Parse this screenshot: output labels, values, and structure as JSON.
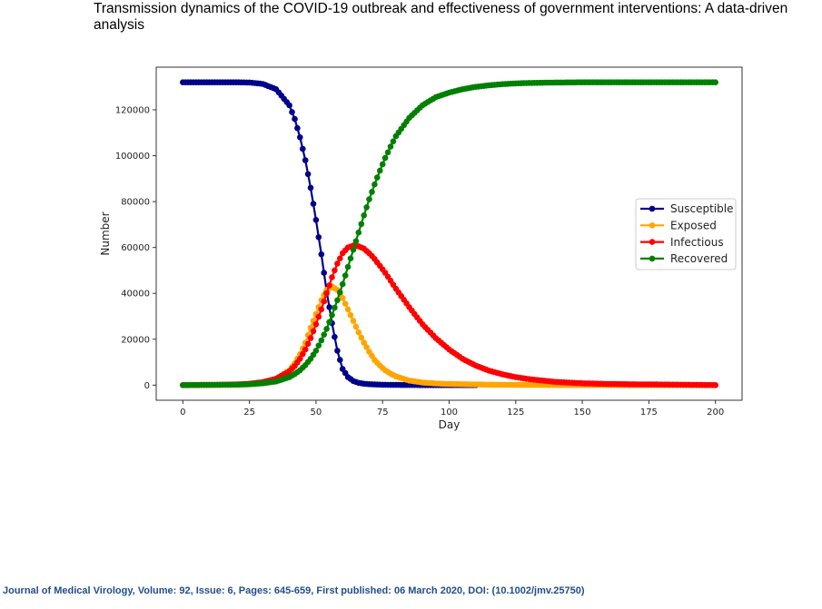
{
  "paper": {
    "title": "Transmission dynamics of the COVID-19 outbreak and effectiveness of government interventions: A data-driven analysis",
    "citation": "Journal of Medical Virology, Volume: 92, Issue: 6, Pages: 645-659, First published: 06 March 2020, DOI: (10.1002/jmv.25750)"
  },
  "chart_data": {
    "type": "line",
    "title": "",
    "xlabel": "Day",
    "ylabel": "Number",
    "xlim": [
      -10,
      210
    ],
    "ylim": [
      -6600,
      138600
    ],
    "xticks": [
      0,
      25,
      50,
      75,
      100,
      125,
      150,
      175,
      200
    ],
    "yticks": [
      0,
      20000,
      40000,
      60000,
      80000,
      100000,
      120000
    ],
    "grid": false,
    "legend_position": "center-right",
    "markers": "circle",
    "x": [
      0,
      10,
      20,
      25,
      30,
      35,
      40,
      42,
      44,
      46,
      48,
      50,
      52,
      54,
      56,
      58,
      60,
      62,
      64,
      66,
      68,
      70,
      72,
      74,
      76,
      78,
      80,
      85,
      90,
      95,
      100,
      105,
      110,
      115,
      120,
      125,
      130,
      140,
      150,
      160,
      170,
      180,
      190,
      200
    ],
    "series": [
      {
        "name": "Susceptible",
        "color": "#00008b",
        "values": [
          132000,
          132000,
          132000,
          131900,
          131300,
          129000,
          122000,
          116000,
          108000,
          98000,
          86000,
          72000,
          57000,
          41000,
          27000,
          15000,
          7000,
          3500,
          1800,
          1000,
          600,
          400,
          300,
          200,
          150,
          100,
          80,
          40,
          20,
          10,
          5,
          2,
          0,
          null,
          null,
          null,
          null,
          null,
          null,
          null,
          null,
          null,
          null,
          null
        ]
      },
      {
        "name": "Exposed",
        "color": "#ffa500",
        "values": [
          0,
          50,
          150,
          300,
          900,
          2500,
          6500,
          9500,
          13500,
          18500,
          25000,
          31000,
          37000,
          41500,
          43000,
          41500,
          38000,
          33000,
          28000,
          23000,
          18500,
          14500,
          11000,
          8500,
          6500,
          5000,
          3800,
          2000,
          1100,
          700,
          500,
          400,
          300,
          200,
          150,
          100,
          80,
          50,
          40,
          30,
          20,
          10,
          5,
          0
        ]
      },
      {
        "name": "Infectious",
        "color": "#ff0000",
        "values": [
          0,
          100,
          300,
          600,
          1300,
          2800,
          6000,
          8300,
          11500,
          15500,
          20500,
          26500,
          33000,
          40000,
          47000,
          53000,
          57500,
          60000,
          60800,
          60500,
          59500,
          57500,
          55000,
          52000,
          49000,
          45500,
          42000,
          34000,
          26500,
          20500,
          15500,
          11500,
          8500,
          6300,
          4700,
          3500,
          2600,
          1400,
          800,
          500,
          350,
          250,
          150,
          0
        ]
      },
      {
        "name": "Recovered",
        "color": "#008000",
        "values": [
          0,
          100,
          200,
          400,
          800,
          1600,
          3500,
          4800,
          6500,
          8700,
          11500,
          15000,
          19500,
          24500,
          30500,
          37000,
          44000,
          51500,
          59000,
          66500,
          74000,
          81000,
          87500,
          93500,
          99000,
          104000,
          108500,
          116500,
          122000,
          125500,
          127500,
          129000,
          130000,
          130700,
          131200,
          131500,
          131700,
          131900,
          132000,
          132000,
          132000,
          132000,
          132000,
          132000
        ]
      }
    ]
  }
}
